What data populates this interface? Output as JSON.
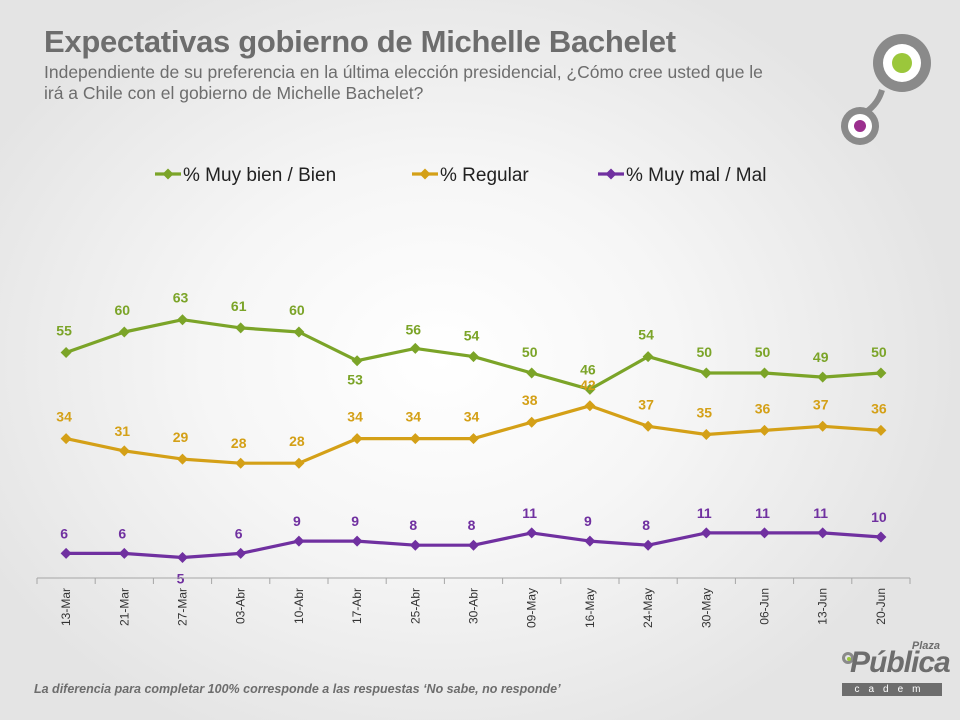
{
  "header": {
    "title": "Expectativas gobierno de Michelle Bachelet",
    "subtitle": "Independiente de su preferencia en la última elección presidencial, ¿Cómo cree usted que le irá a Chile con el gobierno de Michelle Bachelet?"
  },
  "footnote": "La diferencia para completar 100% corresponde a las respuestas ‘No sabe, no responde’",
  "brand": {
    "plaza": "Plaza",
    "publica": "Pública",
    "cadem": "cadem"
  },
  "colors": {
    "green": "#7ba428",
    "gold": "#d4a017",
    "purple": "#7030a0",
    "logo_green": "#9bc73b",
    "logo_purple": "#9b2f8e",
    "logo_ring": "#8a8a8a"
  },
  "chart_data": {
    "type": "line",
    "title": "",
    "xlabel": "",
    "ylabel": "",
    "ylim": [
      0,
      100
    ],
    "grid": false,
    "legend_position": "top",
    "categories": [
      "13-Mar",
      "21-Mar",
      "27-Mar",
      "03-Abr",
      "10-Abr",
      "17-Abr",
      "25-Abr",
      "30-Abr",
      "09-May",
      "16-May",
      "24-May",
      "30-May",
      "06-Jun",
      "13-Jun",
      "20-Jun"
    ],
    "series": [
      {
        "name": "% Muy bien / Bien",
        "color": "#7ba428",
        "values": [
          55,
          60,
          63,
          61,
          60,
          53,
          56,
          54,
          50,
          46,
          54,
          50,
          50,
          49,
          50
        ]
      },
      {
        "name": "% Regular",
        "color": "#d4a017",
        "values": [
          34,
          31,
          29,
          28,
          28,
          34,
          34,
          34,
          38,
          42,
          37,
          35,
          36,
          37,
          36
        ]
      },
      {
        "name": "% Muy mal / Mal",
        "color": "#7030a0",
        "values": [
          6,
          6,
          5,
          6,
          9,
          9,
          8,
          8,
          11,
          9,
          8,
          11,
          11,
          11,
          10
        ]
      }
    ]
  }
}
